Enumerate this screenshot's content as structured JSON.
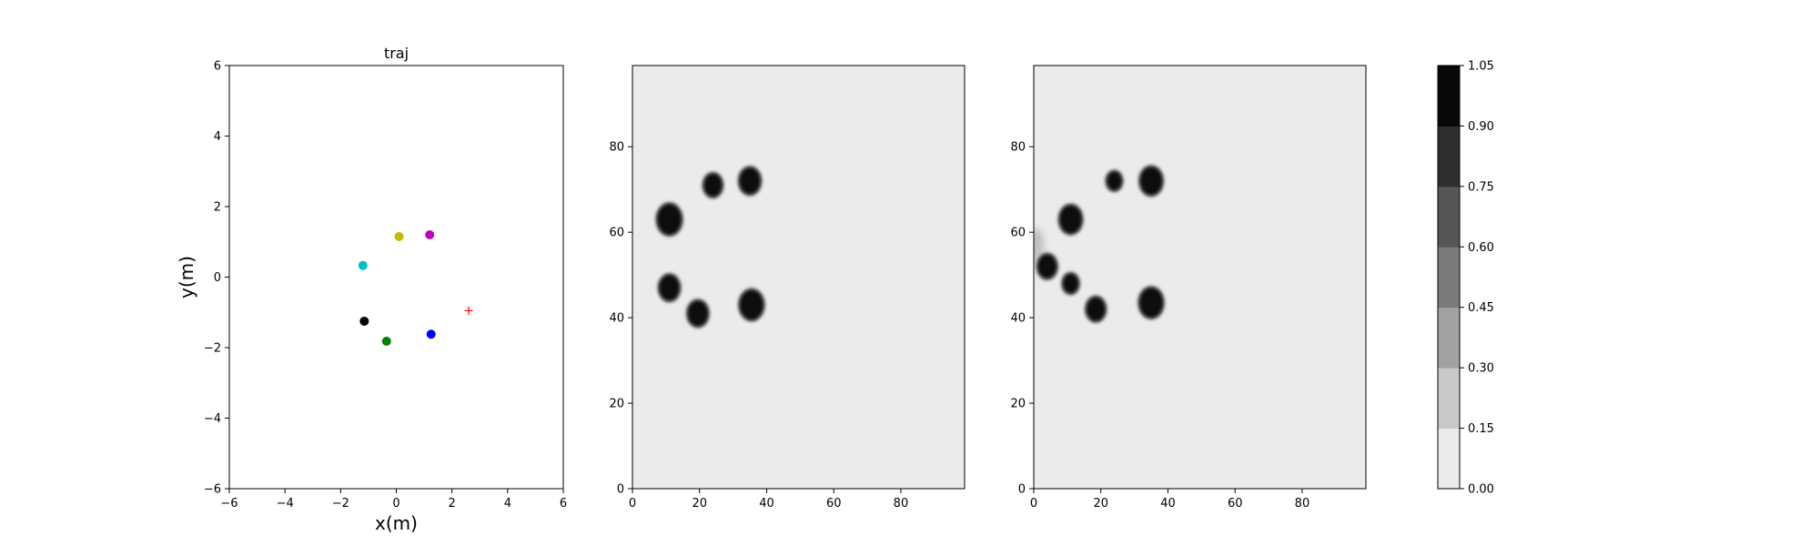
{
  "chart_data": [
    {
      "type": "scatter",
      "title": "traj",
      "xlabel": "x(m)",
      "ylabel": "y(m)",
      "xlim": [
        -6,
        6
      ],
      "ylim": [
        -6,
        6
      ],
      "xticks": [
        -6,
        -4,
        -2,
        0,
        2,
        4,
        6
      ],
      "yticks": [
        -6,
        -4,
        -2,
        0,
        2,
        4,
        6
      ],
      "grid": false,
      "points": [
        {
          "x": 0.1,
          "y": 1.15,
          "color": "#bfbf00",
          "marker": "circle"
        },
        {
          "x": 1.2,
          "y": 1.2,
          "color": "#bf00bf",
          "marker": "circle"
        },
        {
          "x": -1.2,
          "y": 0.33,
          "color": "#00bfbf",
          "marker": "circle"
        },
        {
          "x": -1.15,
          "y": -1.25,
          "color": "#000000",
          "marker": "circle"
        },
        {
          "x": -0.35,
          "y": -1.82,
          "color": "#008000",
          "marker": "circle"
        },
        {
          "x": 1.25,
          "y": -1.62,
          "color": "#0000ff",
          "marker": "circle"
        },
        {
          "x": 2.6,
          "y": -0.95,
          "color": "#ff0000",
          "marker": "plus"
        }
      ]
    },
    {
      "type": "heatmap",
      "title": "",
      "xlim": [
        0,
        99
      ],
      "ylim": [
        0,
        99
      ],
      "xticks": [
        0,
        20,
        40,
        60,
        80
      ],
      "yticks": [
        0,
        20,
        40,
        60,
        80
      ],
      "background_color": "#ebebeb",
      "blobs": [
        {
          "x": 11,
          "y": 63,
          "r": 3.6
        },
        {
          "x": 24,
          "y": 71,
          "r": 2.7
        },
        {
          "x": 35,
          "y": 72,
          "r": 3.1
        },
        {
          "x": 11,
          "y": 47,
          "r": 3.0
        },
        {
          "x": 19.5,
          "y": 41,
          "r": 3.0
        },
        {
          "x": 35.5,
          "y": 43,
          "r": 3.5
        }
      ]
    },
    {
      "type": "heatmap",
      "title": "",
      "xlim": [
        0,
        99
      ],
      "ylim": [
        0,
        99
      ],
      "xticks": [
        0,
        20,
        40,
        60,
        80
      ],
      "yticks": [
        0,
        20,
        40,
        60,
        80
      ],
      "background_color": "#ebebeb",
      "blobs": [
        {
          "x": 11,
          "y": 63,
          "r": 3.3
        },
        {
          "x": 24,
          "y": 72,
          "r": 2.2
        },
        {
          "x": 35,
          "y": 72,
          "r": 3.3
        },
        {
          "x": 4,
          "y": 52,
          "r": 2.8
        },
        {
          "x": 11,
          "y": 48,
          "r": 2.3
        },
        {
          "x": 18.5,
          "y": 42,
          "r": 2.8
        },
        {
          "x": 35,
          "y": 43.5,
          "r": 3.5
        }
      ],
      "faint_blobs": [
        {
          "x": 0.5,
          "y": 57,
          "r": 2.5
        }
      ]
    },
    {
      "type": "colorbar",
      "ticks": [
        "0.00",
        "0.15",
        "0.30",
        "0.45",
        "0.60",
        "0.75",
        "0.90",
        "1.05"
      ],
      "levels": [
        "#ebebeb",
        "#c9c9c9",
        "#a2a2a2",
        "#7b7b7b",
        "#555555",
        "#2e2e2e",
        "#080808"
      ]
    }
  ]
}
